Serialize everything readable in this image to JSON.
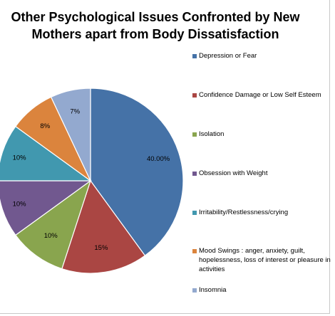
{
  "chart_data": {
    "type": "pie",
    "title": "Other Psychological Issues Confronted by New Mothers apart from Body Dissatisfaction",
    "start_angle_deg": 0,
    "direction": "clockwise",
    "slices": [
      {
        "label": "Depression or Fear",
        "value": 40,
        "display": "40.00%",
        "color": "#4572A7"
      },
      {
        "label": "Confidence Damage or Low Self Esteem",
        "value": 15,
        "display": "15%",
        "color": "#AA4643"
      },
      {
        "label": "Isolation",
        "value": 10,
        "display": "10%",
        "color": "#89A54E"
      },
      {
        "label": "Obsession with Weight",
        "value": 10,
        "display": "10%",
        "color": "#71588F"
      },
      {
        "label": "Irritability/Restlessness/crying",
        "value": 10,
        "display": "10%",
        "color": "#4198AF"
      },
      {
        "label": "Mood Swings : anger, anxiety, guilt, hopelessness, loss of interest or pleasure in activities",
        "value": 8,
        "display": "8%",
        "color": "#DB843D"
      },
      {
        "label": "Insomnia",
        "value": 7,
        "display": "7%",
        "color": "#93A9CF"
      }
    ],
    "legend_position": "right"
  }
}
